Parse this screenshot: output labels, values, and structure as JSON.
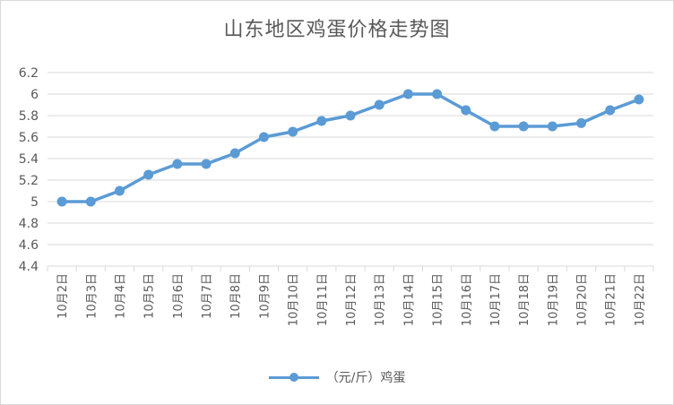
{
  "chart_data": {
    "type": "line",
    "title": "山东地区鸡蛋价格走势图",
    "categories": [
      "10月2日",
      "10月3日",
      "10月4日",
      "10月5日",
      "10月6日",
      "10月7日",
      "10月8日",
      "10月9日",
      "10月10日",
      "10月11日",
      "10月12日",
      "10月13日",
      "10月14日",
      "10月15日",
      "10月16日",
      "10月17日",
      "10月18日",
      "10月19日",
      "10月20日",
      "10月21日",
      "10月22日"
    ],
    "series": [
      {
        "name": "（元/斤）鸡蛋",
        "color": "#5b9bd5",
        "values": [
          5.0,
          5.0,
          5.1,
          5.25,
          5.35,
          5.35,
          5.45,
          5.6,
          5.65,
          5.75,
          5.8,
          5.9,
          6.0,
          6.0,
          5.85,
          5.7,
          5.7,
          5.7,
          5.73,
          5.85,
          5.95
        ]
      }
    ],
    "ylim": [
      4.4,
      6.2
    ],
    "yticks": [
      "4.4",
      "4.6",
      "4.8",
      "5",
      "5.2",
      "5.4",
      "5.6",
      "5.8",
      "6",
      "6.2"
    ],
    "xlabel": "",
    "ylabel": "",
    "grid": true,
    "legend_position": "bottom"
  }
}
